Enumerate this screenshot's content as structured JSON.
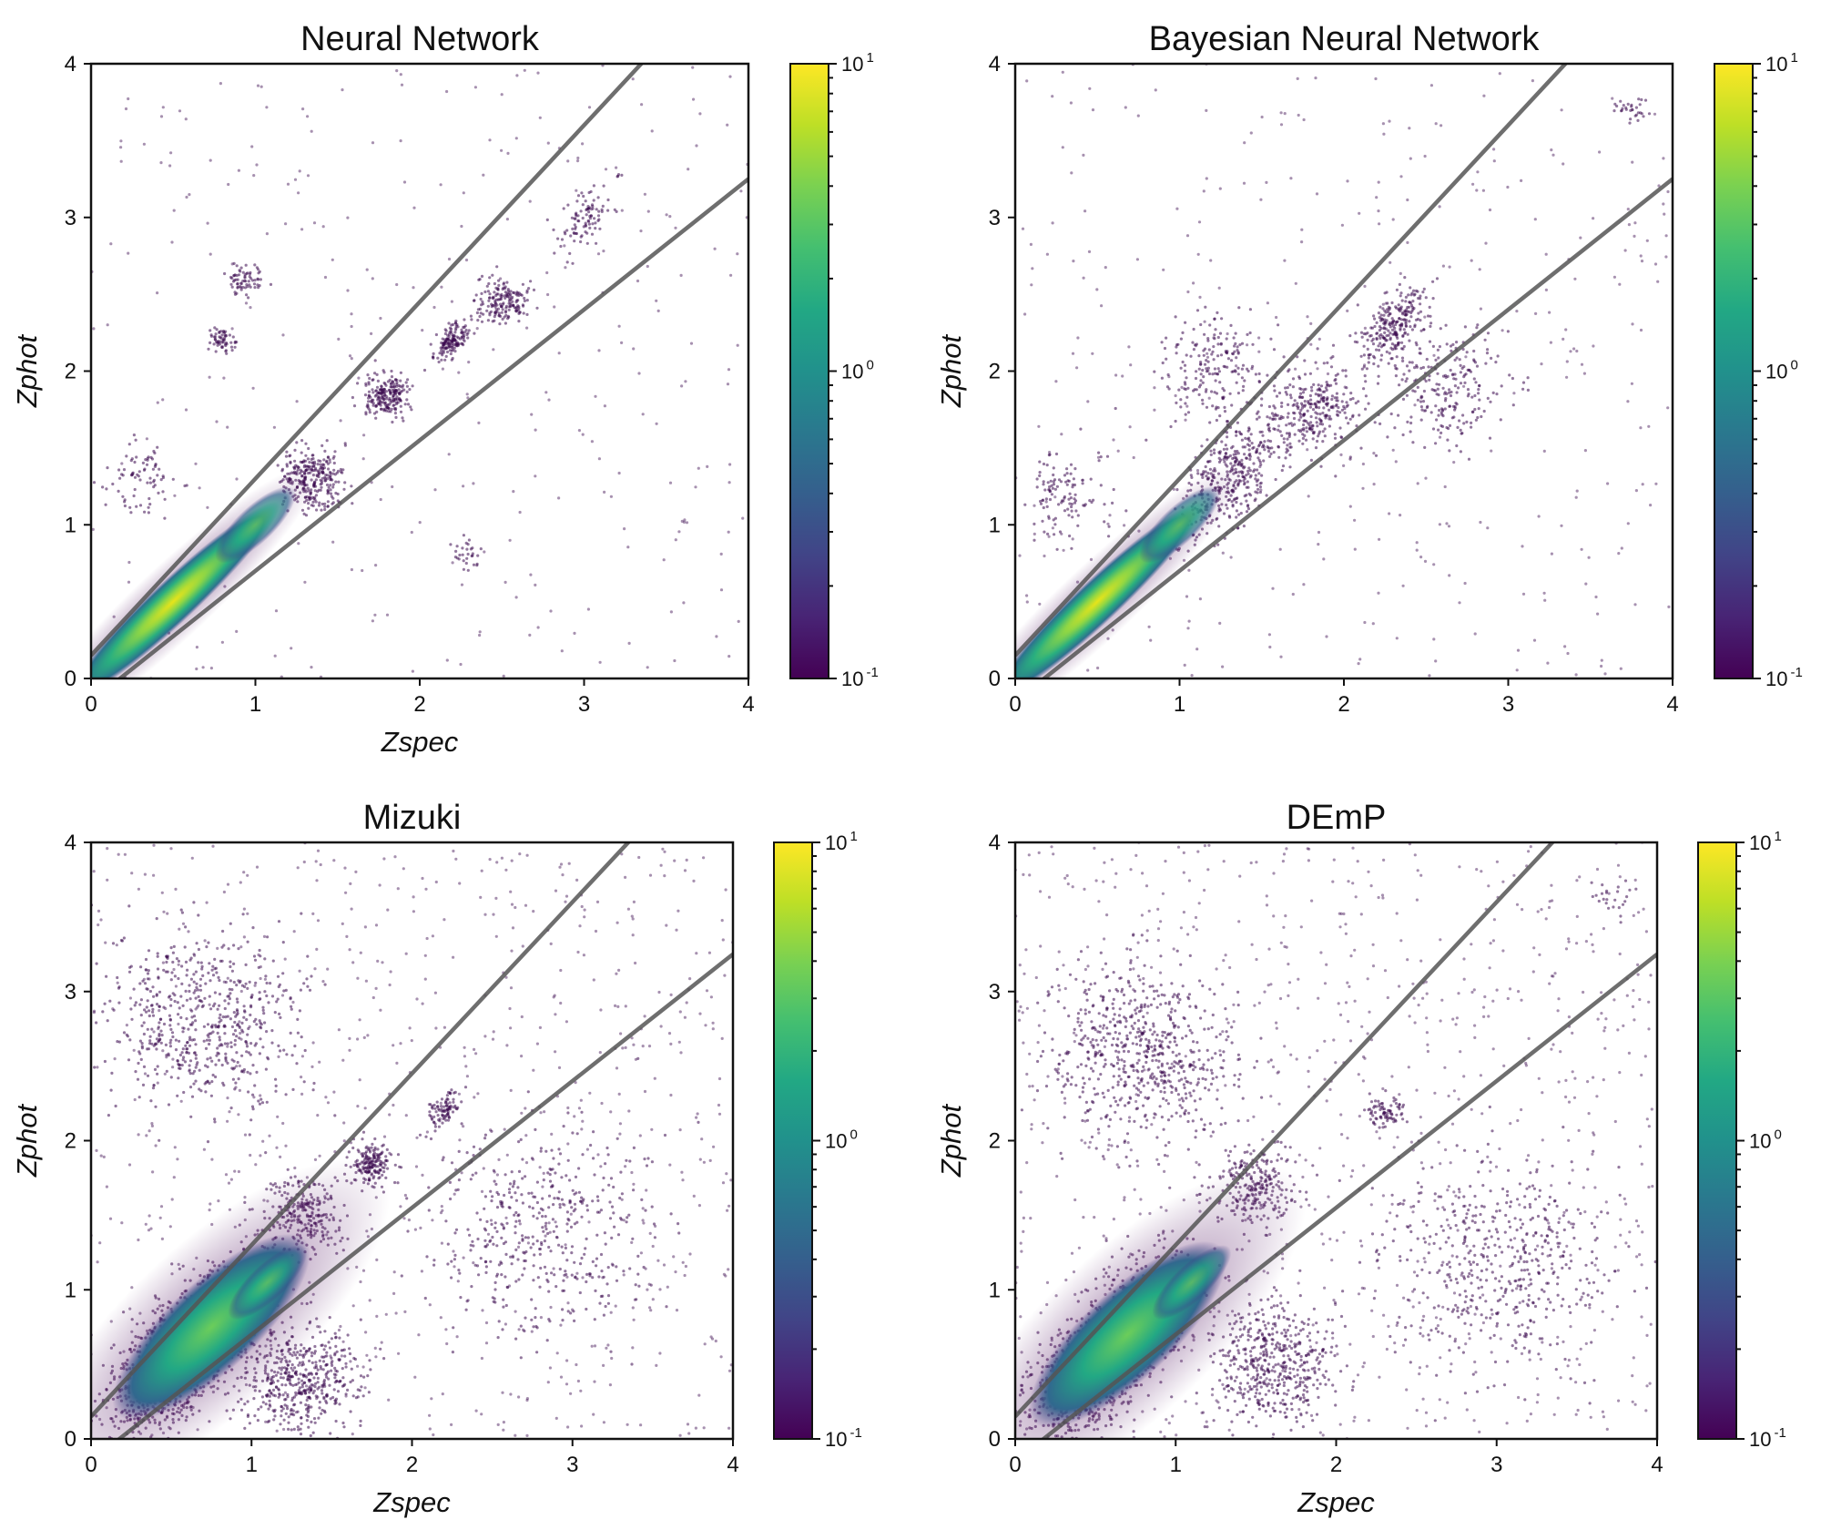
{
  "chart_data": [
    {
      "type": "scatter",
      "title": "Neural Network",
      "xlabel": "Zspec",
      "ylabel": "Zphot",
      "xlim": [
        0,
        4
      ],
      "ylim": [
        0,
        4
      ],
      "xticks": [
        "0",
        "1",
        "2",
        "3",
        "4"
      ],
      "yticks": [
        "0",
        "1",
        "2",
        "3",
        "4"
      ],
      "reference_lines": [
        {
          "name": "upper",
          "slope": 1.15,
          "intercept": 0.15
        },
        {
          "name": "lower",
          "slope": 0.85,
          "intercept": -0.15
        }
      ],
      "colorbar": {
        "scale": "log",
        "min": 0.1,
        "max": 10,
        "ticks": [
          {
            "base": "10",
            "exp": "-1"
          },
          {
            "base": "10",
            "exp": "0"
          },
          {
            "base": "10",
            "exp": "1"
          }
        ],
        "colormap": "viridis"
      },
      "density_core": [
        {
          "zspec": 0.5,
          "zphot": 0.5,
          "density": 10
        },
        {
          "zspec": 1.0,
          "zphot": 1.0,
          "density": 1.5
        }
      ],
      "clusters": [
        {
          "zspec": 1.35,
          "zphot": 1.3,
          "spread": 0.2,
          "count": 300
        },
        {
          "zspec": 1.8,
          "zphot": 1.85,
          "spread": 0.15,
          "count": 220
        },
        {
          "zspec": 2.2,
          "zphot": 2.2,
          "spread": 0.1,
          "count": 150
        },
        {
          "zspec": 2.5,
          "zphot": 2.45,
          "spread": 0.15,
          "count": 180
        },
        {
          "zspec": 3.0,
          "zphot": 3.0,
          "spread": 0.18,
          "count": 100
        },
        {
          "zspec": 0.95,
          "zphot": 2.6,
          "spread": 0.1,
          "count": 70
        },
        {
          "zspec": 0.8,
          "zphot": 2.2,
          "spread": 0.08,
          "count": 60
        },
        {
          "zspec": 0.3,
          "zphot": 1.3,
          "spread": 0.25,
          "count": 80
        },
        {
          "zspec": 2.3,
          "zphot": 0.8,
          "spread": 0.1,
          "count": 30
        }
      ],
      "scatter_outliers": 300
    },
    {
      "type": "scatter",
      "title": "Bayesian Neural Network",
      "xlabel": "",
      "ylabel": "Zphot",
      "xlim": [
        0,
        4
      ],
      "ylim": [
        0,
        4
      ],
      "xticks": [
        "0",
        "1",
        "2",
        "3",
        "4"
      ],
      "yticks": [
        "0",
        "1",
        "2",
        "3",
        "4"
      ],
      "reference_lines": [
        {
          "name": "upper",
          "slope": 1.15,
          "intercept": 0.15
        },
        {
          "name": "lower",
          "slope": 0.85,
          "intercept": -0.15
        }
      ],
      "colorbar": {
        "scale": "log",
        "min": 0.1,
        "max": 10,
        "ticks": [
          {
            "base": "10",
            "exp": "-1"
          },
          {
            "base": "10",
            "exp": "0"
          },
          {
            "base": "10",
            "exp": "1"
          }
        ],
        "colormap": "viridis"
      },
      "density_core": [
        {
          "zspec": 0.5,
          "zphot": 0.5,
          "density": 10
        },
        {
          "zspec": 1.0,
          "zphot": 1.0,
          "density": 1.5
        }
      ],
      "clusters": [
        {
          "zspec": 1.3,
          "zphot": 1.3,
          "spread": 0.3,
          "count": 400
        },
        {
          "zspec": 1.8,
          "zphot": 1.75,
          "spread": 0.3,
          "count": 300
        },
        {
          "zspec": 2.3,
          "zphot": 2.3,
          "spread": 0.2,
          "count": 250
        },
        {
          "zspec": 1.2,
          "zphot": 2.0,
          "spread": 0.35,
          "count": 200
        },
        {
          "zspec": 2.6,
          "zphot": 1.9,
          "spread": 0.4,
          "count": 250
        },
        {
          "zspec": 3.75,
          "zphot": 3.7,
          "spread": 0.1,
          "count": 30
        },
        {
          "zspec": 0.3,
          "zphot": 1.2,
          "spread": 0.3,
          "count": 120
        }
      ],
      "scatter_outliers": 380
    },
    {
      "type": "scatter",
      "title": "Mizuki",
      "xlabel": "Zspec",
      "ylabel": "Zphot",
      "xlim": [
        0,
        4
      ],
      "ylim": [
        0,
        4
      ],
      "xticks": [
        "0",
        "1",
        "2",
        "3",
        "4"
      ],
      "yticks": [
        "0",
        "1",
        "2",
        "3",
        "4"
      ],
      "reference_lines": [
        {
          "name": "upper",
          "slope": 1.15,
          "intercept": 0.15
        },
        {
          "name": "lower",
          "slope": 0.85,
          "intercept": -0.15
        }
      ],
      "colorbar": {
        "scale": "log",
        "min": 0.1,
        "max": 10,
        "ticks": [
          {
            "base": "10",
            "exp": "-1"
          },
          {
            "base": "10",
            "exp": "0"
          },
          {
            "base": "10",
            "exp": "1"
          }
        ],
        "colormap": "viridis"
      },
      "density_core": [
        {
          "zspec": 0.75,
          "zphot": 0.75,
          "density": 4
        },
        {
          "zspec": 1.1,
          "zphot": 1.05,
          "density": 1.5
        }
      ],
      "clusters": [
        {
          "zspec": 0.55,
          "zphot": 0.55,
          "spread": 0.45,
          "count": 1200
        },
        {
          "zspec": 1.3,
          "zphot": 1.5,
          "spread": 0.25,
          "count": 250
        },
        {
          "zspec": 1.75,
          "zphot": 1.85,
          "spread": 0.15,
          "count": 180
        },
        {
          "zspec": 2.2,
          "zphot": 2.2,
          "spread": 0.1,
          "count": 90
        },
        {
          "zspec": 0.7,
          "zphot": 2.8,
          "spread": 0.6,
          "count": 600
        },
        {
          "zspec": 1.3,
          "zphot": 0.4,
          "spread": 0.35,
          "count": 500
        },
        {
          "zspec": 2.8,
          "zphot": 1.4,
          "spread": 0.7,
          "count": 450
        }
      ],
      "scatter_outliers": 800
    },
    {
      "type": "scatter",
      "title": "DEmP",
      "xlabel": "Zspec",
      "ylabel": "Zphot",
      "xlim": [
        0,
        4
      ],
      "ylim": [
        0,
        4
      ],
      "xticks": [
        "0",
        "1",
        "2",
        "3",
        "4"
      ],
      "yticks": [
        "0",
        "1",
        "2",
        "3",
        "4"
      ],
      "reference_lines": [
        {
          "name": "upper",
          "slope": 1.15,
          "intercept": 0.15
        },
        {
          "name": "lower",
          "slope": 0.85,
          "intercept": -0.15
        }
      ],
      "colorbar": {
        "scale": "log",
        "min": 0.1,
        "max": 10,
        "ticks": [
          {
            "base": "10",
            "exp": "-1"
          },
          {
            "base": "10",
            "exp": "0"
          },
          {
            "base": "10",
            "exp": "1"
          }
        ],
        "colormap": "viridis"
      },
      "density_core": [
        {
          "zspec": 0.7,
          "zphot": 0.7,
          "density": 4
        },
        {
          "zspec": 1.1,
          "zphot": 1.05,
          "density": 1.5
        }
      ],
      "clusters": [
        {
          "zspec": 0.55,
          "zphot": 0.55,
          "spread": 0.45,
          "count": 1200
        },
        {
          "zspec": 1.5,
          "zphot": 1.7,
          "spread": 0.25,
          "count": 250
        },
        {
          "zspec": 2.3,
          "zphot": 2.2,
          "spread": 0.12,
          "count": 80
        },
        {
          "zspec": 0.8,
          "zphot": 2.6,
          "spread": 0.6,
          "count": 650
        },
        {
          "zspec": 1.6,
          "zphot": 0.5,
          "spread": 0.4,
          "count": 500
        },
        {
          "zspec": 3.0,
          "zphot": 1.2,
          "spread": 0.7,
          "count": 500
        },
        {
          "zspec": 3.7,
          "zphot": 3.6,
          "spread": 0.15,
          "count": 25
        }
      ],
      "scatter_outliers": 900
    }
  ]
}
